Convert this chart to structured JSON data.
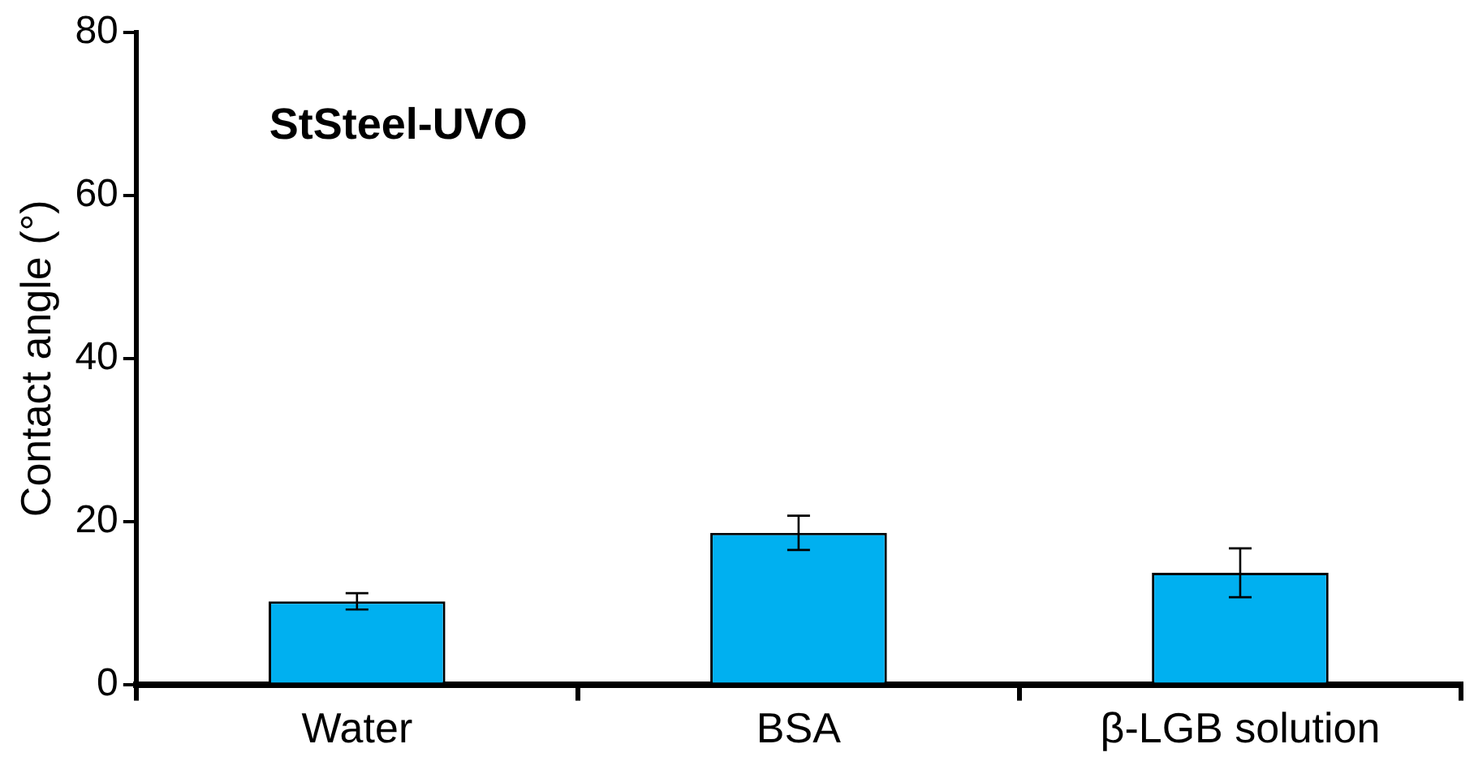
{
  "chart_data": {
    "type": "bar",
    "title": "StSteel-UVO",
    "ylabel": "Contact angle (°)",
    "categories": [
      "Water",
      "BSA",
      "β-LGB solution"
    ],
    "values": [
      10.2,
      18.6,
      13.7
    ],
    "color": "#00b0f0",
    "errors": [
      1.0,
      2.1,
      3.0
    ],
    "ylim": [
      0,
      80
    ],
    "yticks": [
      0,
      20,
      40,
      60,
      80
    ],
    "grid": false,
    "legend": false
  }
}
